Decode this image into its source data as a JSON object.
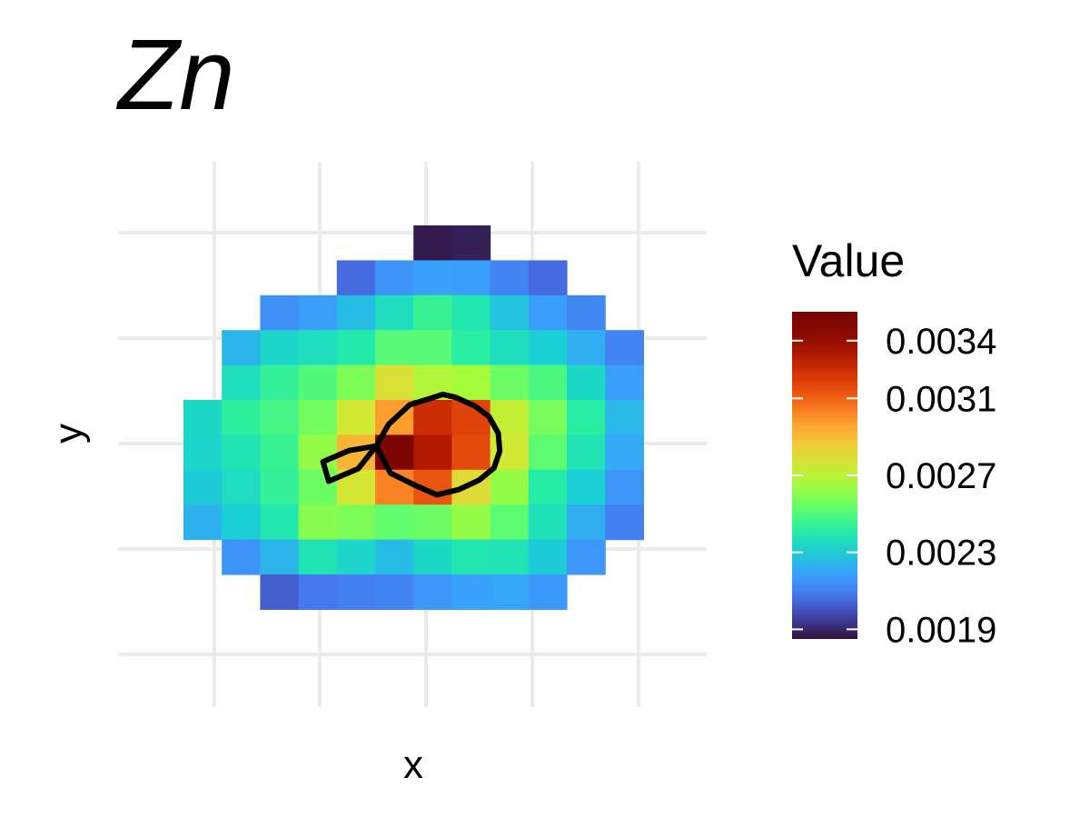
{
  "chart_data": {
    "type": "heatmap",
    "title": "Zn",
    "xlabel": "x",
    "ylabel": "y",
    "grid": true,
    "color_scale": "turbo",
    "value_range": [
      0.00185,
      0.00355
    ],
    "legend": {
      "title": "Value",
      "placement": "right",
      "ticks": [
        0.0019,
        0.0023,
        0.0027,
        0.0031,
        0.0034
      ],
      "tick_labels": [
        "0.0019",
        "0.0023",
        "0.0027",
        "0.0031",
        "0.0034"
      ]
    },
    "x_index": [
      0,
      1,
      2,
      3,
      4,
      5,
      6,
      7,
      8,
      9,
      10,
      11
    ],
    "y_index": [
      0,
      1,
      2,
      3,
      4,
      5,
      6,
      7,
      8,
      9,
      10
    ],
    "grid_values": [
      [
        null,
        null,
        null,
        null,
        null,
        null,
        0.00187,
        0.00188,
        null,
        null,
        null,
        null
      ],
      [
        null,
        null,
        null,
        null,
        0.00205,
        0.00215,
        0.00219,
        0.00218,
        0.00211,
        0.00205,
        null,
        null
      ],
      [
        null,
        null,
        0.00214,
        0.00218,
        0.00226,
        0.00236,
        0.00245,
        0.00239,
        0.00228,
        0.00218,
        0.00212,
        null
      ],
      [
        null,
        0.00224,
        0.00233,
        0.00236,
        0.0024,
        0.00251,
        0.00251,
        0.00242,
        0.00236,
        0.00231,
        0.00222,
        0.00211
      ],
      [
        null,
        0.00236,
        0.00244,
        0.0025,
        0.00258,
        0.00278,
        0.00268,
        0.00265,
        0.00255,
        0.00249,
        0.00234,
        0.00218
      ],
      [
        0.00234,
        0.00243,
        0.00248,
        0.00256,
        0.00275,
        0.00298,
        0.00325,
        0.00318,
        0.00272,
        0.00257,
        0.00242,
        0.00225
      ],
      [
        0.00233,
        0.00238,
        0.00245,
        0.00262,
        0.00292,
        0.00352,
        0.00333,
        0.00316,
        0.00275,
        0.00252,
        0.00238,
        0.00221
      ],
      [
        0.0023,
        0.00235,
        0.00244,
        0.00255,
        0.00276,
        0.00303,
        0.00313,
        0.0028,
        0.00262,
        0.00241,
        0.00231,
        0.00216
      ],
      [
        0.00223,
        0.00231,
        0.00239,
        0.0026,
        0.00258,
        0.00253,
        0.00255,
        0.00262,
        0.00252,
        0.00237,
        0.00222,
        0.0021
      ],
      [
        null,
        0.00215,
        0.00224,
        0.00238,
        0.00233,
        0.00226,
        0.00234,
        0.00239,
        0.00238,
        0.0023,
        0.00216,
        null
      ],
      [
        null,
        null,
        0.00202,
        0.00208,
        0.0021,
        0.00211,
        0.00216,
        0.00219,
        0.0022,
        0.00217,
        null,
        null
      ]
    ],
    "contours": [
      {
        "points": [
          [
            5.03,
            6.32
          ],
          [
            4.32,
            6.45
          ],
          [
            3.64,
            6.77
          ],
          [
            3.79,
            7.33
          ],
          [
            4.56,
            6.97
          ],
          [
            5.03,
            6.32
          ]
        ]
      },
      {
        "points": [
          [
            5.03,
            6.32
          ],
          [
            5.35,
            5.7
          ],
          [
            5.9,
            5.14
          ],
          [
            6.41,
            4.97
          ],
          [
            6.77,
            4.84
          ],
          [
            7.11,
            4.93
          ],
          [
            7.61,
            5.18
          ],
          [
            7.97,
            5.48
          ],
          [
            8.21,
            5.95
          ],
          [
            8.25,
            6.47
          ],
          [
            8.1,
            6.95
          ],
          [
            7.71,
            7.3
          ],
          [
            7.18,
            7.57
          ],
          [
            6.61,
            7.72
          ],
          [
            6.07,
            7.46
          ],
          [
            5.4,
            7.1
          ],
          [
            5.03,
            6.32
          ]
        ]
      }
    ]
  }
}
